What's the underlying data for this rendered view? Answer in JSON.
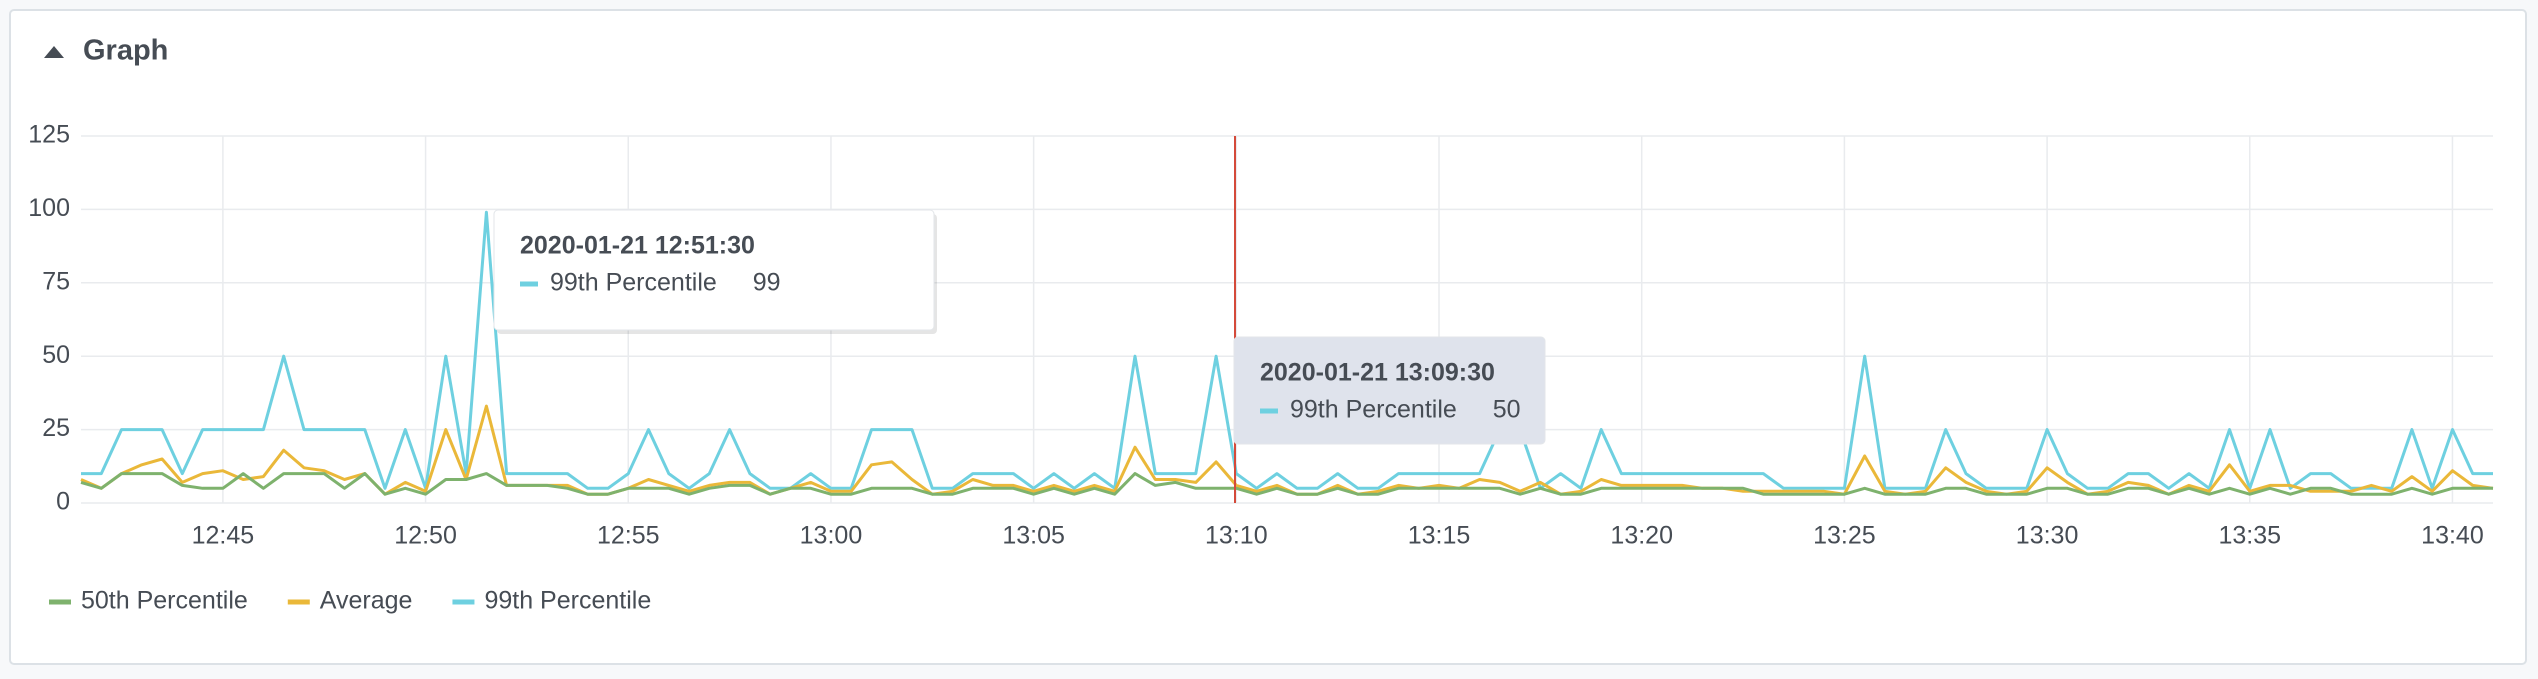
{
  "panel_title": "Graph",
  "chart_data": {
    "type": "line",
    "x": [
      "12:41:30",
      "12:42:00",
      "12:42:30",
      "12:43:00",
      "12:43:30",
      "12:44:00",
      "12:44:30",
      "12:45:00",
      "12:45:30",
      "12:46:00",
      "12:46:30",
      "12:47:00",
      "12:47:30",
      "12:48:00",
      "12:48:30",
      "12:49:00",
      "12:49:30",
      "12:50:00",
      "12:50:30",
      "12:51:00",
      "12:51:30",
      "12:52:00",
      "12:52:30",
      "12:53:00",
      "12:53:30",
      "12:54:00",
      "12:54:30",
      "12:55:00",
      "12:55:30",
      "12:56:00",
      "12:56:30",
      "12:57:00",
      "12:57:30",
      "12:58:00",
      "12:58:30",
      "12:59:00",
      "12:59:30",
      "13:00:00",
      "13:00:30",
      "13:01:00",
      "13:01:30",
      "13:02:00",
      "13:02:30",
      "13:03:00",
      "13:03:30",
      "13:04:00",
      "13:04:30",
      "13:05:00",
      "13:05:30",
      "13:06:00",
      "13:06:30",
      "13:07:00",
      "13:07:30",
      "13:08:00",
      "13:08:30",
      "13:09:00",
      "13:09:30",
      "13:10:00",
      "13:10:30",
      "13:11:00",
      "13:11:30",
      "13:12:00",
      "13:12:30",
      "13:13:00",
      "13:13:30",
      "13:14:00",
      "13:14:30",
      "13:15:00",
      "13:15:30",
      "13:16:00",
      "13:16:30",
      "13:17:00",
      "13:17:30",
      "13:18:00",
      "13:18:30",
      "13:19:00",
      "13:19:30",
      "13:20:00",
      "13:20:30",
      "13:21:00",
      "13:21:30",
      "13:22:00",
      "13:22:30",
      "13:23:00",
      "13:23:30",
      "13:24:00",
      "13:24:30",
      "13:25:00",
      "13:25:30",
      "13:26:00",
      "13:26:30",
      "13:27:00",
      "13:27:30",
      "13:28:00",
      "13:28:30",
      "13:29:00",
      "13:29:30",
      "13:30:00",
      "13:30:30",
      "13:31:00",
      "13:31:30",
      "13:32:00",
      "13:32:30",
      "13:33:00",
      "13:33:30",
      "13:34:00",
      "13:34:30",
      "13:35:00",
      "13:35:30",
      "13:36:00",
      "13:36:30",
      "13:37:00",
      "13:37:30",
      "13:38:00",
      "13:38:30",
      "13:39:00",
      "13:39:30",
      "13:40:00",
      "13:40:30",
      "13:41:00"
    ],
    "series": [
      {
        "name": "50th Percentile",
        "color": "#7eb26d",
        "values": [
          7,
          5,
          10,
          10,
          10,
          6,
          5,
          5,
          10,
          5,
          10,
          10,
          10,
          5,
          10,
          3,
          5,
          3,
          8,
          8,
          10,
          6,
          6,
          6,
          5,
          3,
          3,
          5,
          5,
          5,
          3,
          5,
          6,
          6,
          3,
          5,
          5,
          3,
          3,
          5,
          5,
          5,
          3,
          3,
          5,
          5,
          5,
          3,
          5,
          3,
          5,
          3,
          10,
          6,
          7,
          5,
          5,
          5,
          3,
          5,
          3,
          3,
          5,
          3,
          3,
          5,
          5,
          5,
          5,
          5,
          5,
          3,
          5,
          3,
          3,
          5,
          5,
          5,
          5,
          5,
          5,
          5,
          5,
          3,
          3,
          3,
          3,
          3,
          5,
          3,
          3,
          3,
          5,
          5,
          3,
          3,
          3,
          5,
          5,
          3,
          3,
          5,
          5,
          3,
          5,
          3,
          5,
          3,
          5,
          3,
          5,
          5,
          3,
          3,
          3,
          5,
          3,
          5,
          5,
          5
        ]
      },
      {
        "name": "Average",
        "color": "#eab839",
        "values": [
          8,
          5,
          10,
          13,
          15,
          7,
          10,
          11,
          8,
          9,
          18,
          12,
          11,
          8,
          10,
          3,
          7,
          4,
          25,
          8,
          33,
          6,
          6,
          6,
          6,
          3,
          3,
          5,
          8,
          6,
          4,
          6,
          7,
          7,
          3,
          5,
          7,
          4,
          4,
          13,
          14,
          8,
          3,
          4,
          8,
          6,
          6,
          4,
          6,
          4,
          6,
          4,
          19,
          8,
          8,
          7,
          14,
          6,
          4,
          6,
          3,
          3,
          6,
          3,
          4,
          6,
          5,
          6,
          5,
          8,
          7,
          4,
          7,
          3,
          4,
          8,
          6,
          6,
          6,
          6,
          5,
          5,
          4,
          4,
          4,
          4,
          4,
          3,
          16,
          4,
          3,
          4,
          12,
          7,
          4,
          3,
          4,
          12,
          7,
          3,
          4,
          7,
          6,
          3,
          6,
          4,
          13,
          4,
          6,
          6,
          4,
          4,
          4,
          6,
          4,
          9,
          4,
          11,
          6,
          5
        ]
      },
      {
        "name": "99th Percentile",
        "color": "#6ed0e0",
        "values": [
          10,
          10,
          25,
          25,
          25,
          10,
          25,
          25,
          25,
          25,
          50,
          25,
          25,
          25,
          25,
          5,
          25,
          5,
          50,
          10,
          99,
          10,
          10,
          10,
          10,
          5,
          5,
          10,
          25,
          10,
          5,
          10,
          25,
          10,
          5,
          5,
          10,
          5,
          5,
          25,
          25,
          25,
          5,
          5,
          10,
          10,
          10,
          5,
          10,
          5,
          10,
          5,
          50,
          10,
          10,
          10,
          50,
          10,
          5,
          10,
          5,
          5,
          10,
          5,
          5,
          10,
          10,
          10,
          10,
          10,
          25,
          25,
          5,
          10,
          5,
          25,
          10,
          10,
          10,
          10,
          10,
          10,
          10,
          10,
          5,
          5,
          5,
          5,
          50,
          5,
          5,
          5,
          25,
          10,
          5,
          5,
          5,
          25,
          10,
          5,
          5,
          10,
          10,
          5,
          10,
          5,
          25,
          5,
          25,
          5,
          10,
          10,
          5,
          5,
          5,
          25,
          5,
          25,
          10,
          10
        ]
      }
    ],
    "xlim": [
      "12:41:30",
      "13:41:00"
    ],
    "xticks": [
      "12:45",
      "12:50",
      "12:55",
      "13:00",
      "13:05",
      "13:10",
      "13:15",
      "13:20",
      "13:25",
      "13:30",
      "13:35",
      "13:40"
    ],
    "ylim": [
      0,
      125
    ],
    "yticks": [
      0,
      25,
      50,
      75,
      100,
      125
    ],
    "grid": true,
    "legend": "bottom-left",
    "tooltips": [
      {
        "time": "2020-01-21 12:51:30",
        "series": "99th Percentile",
        "value": 99
      },
      {
        "time": "2020-01-21 13:09:30",
        "series": "99th Percentile",
        "value": 50
      }
    ]
  }
}
